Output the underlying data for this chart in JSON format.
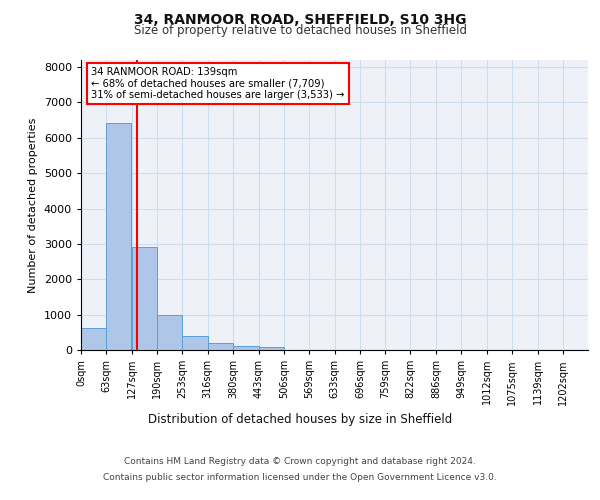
{
  "title_line1": "34, RANMOOR ROAD, SHEFFIELD, S10 3HG",
  "title_line2": "Size of property relative to detached houses in Sheffield",
  "xlabel": "Distribution of detached houses by size in Sheffield",
  "ylabel": "Number of detached properties",
  "property_size": 139,
  "pct_smaller": 68,
  "num_smaller": 7709,
  "pct_larger_semi": 31,
  "num_larger_semi": 3533,
  "bin_edges": [
    0,
    63,
    127,
    190,
    253,
    316,
    380,
    443,
    506,
    569,
    633,
    696,
    759,
    822,
    886,
    949,
    1012,
    1075,
    1139,
    1202,
    1265
  ],
  "bar_heights": [
    620,
    6430,
    2920,
    1000,
    390,
    185,
    110,
    80,
    0,
    0,
    0,
    0,
    0,
    0,
    0,
    0,
    0,
    0,
    0,
    0
  ],
  "bar_color": "#aec6e8",
  "bar_edge_color": "#5a9fd4",
  "vline_color": "red",
  "vline_x": 139,
  "grid_color": "#ccddee",
  "background_color": "#eef2f8",
  "ylim": [
    0,
    8200
  ],
  "yticks": [
    0,
    1000,
    2000,
    3000,
    4000,
    5000,
    6000,
    7000,
    8000
  ],
  "footer_line1": "Contains HM Land Registry data © Crown copyright and database right 2024.",
  "footer_line2": "Contains public sector information licensed under the Open Government Licence v3.0."
}
